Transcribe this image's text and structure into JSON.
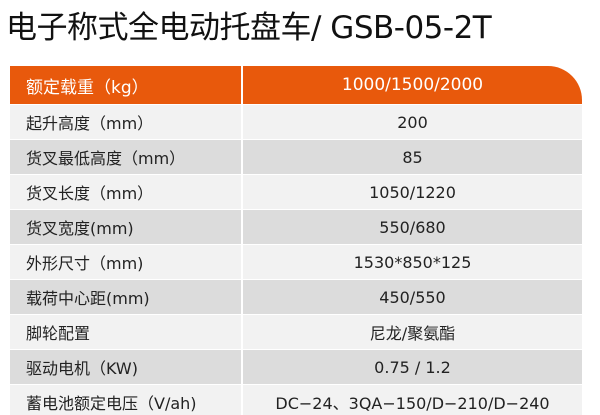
{
  "title": "电子称式全电动托盘车/ GSB-05-2T",
  "accent_color": "#e8590c",
  "header": {
    "label": "额定载重（kg）",
    "value": "1000/1500/2000"
  },
  "rows": [
    {
      "label": "起升高度（mm）",
      "value": "200"
    },
    {
      "label": "货叉最低高度（mm）",
      "value": "85"
    },
    {
      "label": "货叉长度（mm）",
      "value": "1050/1220"
    },
    {
      "label": "货叉宽度(mm)",
      "value": "550/680"
    },
    {
      "label": "外形尺寸（mm)",
      "value": "1530*850*125"
    },
    {
      "label": "载荷中心距(mm)",
      "value": "450/550"
    },
    {
      "label": "脚轮配置",
      "value": "尼龙/聚氨酯"
    },
    {
      "label": "驱动电机（KW)",
      "value": "0.75 / 1.2"
    },
    {
      "label": "蓄电池额定电压（V/ah)",
      "value": "DC−24、3QA−150/D−210/D−240"
    }
  ]
}
